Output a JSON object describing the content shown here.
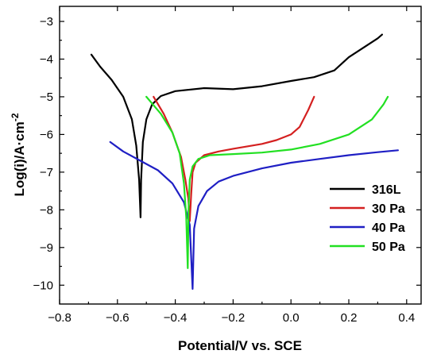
{
  "chart_data": {
    "type": "line",
    "title": "",
    "xlabel": "Potential/V vs. SCE",
    "ylabel": "Log(i)/A·cm-2",
    "xlim": [
      -0.8,
      0.45
    ],
    "ylim": [
      -10.5,
      -2.6
    ],
    "xticks": [
      -0.8,
      -0.6,
      -0.4,
      -0.2,
      0.0,
      0.2,
      0.4
    ],
    "xtick_labels": [
      "−0.8",
      "−0.6",
      "−0.4",
      "−0.2",
      "0.0",
      "0.2",
      "0.4"
    ],
    "yticks": [
      -10,
      -9,
      -8,
      -7,
      -6,
      -5,
      -4,
      -3
    ],
    "ytick_labels": [
      "−10",
      "−9",
      "−8",
      "−7",
      "−6",
      "−5",
      "−4",
      "−3"
    ],
    "grid": false,
    "legend_position": "lower-right",
    "series": [
      {
        "name": "316L",
        "color": "#000000",
        "points": [
          [
            -0.69,
            -3.88
          ],
          [
            -0.66,
            -4.2
          ],
          [
            -0.62,
            -4.55
          ],
          [
            -0.58,
            -5.0
          ],
          [
            -0.55,
            -5.6
          ],
          [
            -0.535,
            -6.3
          ],
          [
            -0.525,
            -7.2
          ],
          [
            -0.52,
            -8.2
          ],
          [
            -0.518,
            -7.2
          ],
          [
            -0.512,
            -6.2
          ],
          [
            -0.5,
            -5.6
          ],
          [
            -0.48,
            -5.2
          ],
          [
            -0.45,
            -4.98
          ],
          [
            -0.4,
            -4.85
          ],
          [
            -0.3,
            -4.77
          ],
          [
            -0.2,
            -4.8
          ],
          [
            -0.1,
            -4.72
          ],
          [
            0.0,
            -4.58
          ],
          [
            0.08,
            -4.48
          ],
          [
            0.15,
            -4.3
          ],
          [
            0.2,
            -3.95
          ],
          [
            0.25,
            -3.7
          ],
          [
            0.3,
            -3.45
          ],
          [
            0.315,
            -3.35
          ]
        ]
      },
      {
        "name": "30 Pa",
        "color": "#d42020",
        "points": [
          [
            -0.475,
            -5.0
          ],
          [
            -0.44,
            -5.45
          ],
          [
            -0.41,
            -5.95
          ],
          [
            -0.38,
            -6.6
          ],
          [
            -0.365,
            -7.2
          ],
          [
            -0.355,
            -7.7
          ],
          [
            -0.35,
            -8.3
          ],
          [
            -0.345,
            -7.6
          ],
          [
            -0.34,
            -7.0
          ],
          [
            -0.33,
            -6.75
          ],
          [
            -0.3,
            -6.55
          ],
          [
            -0.25,
            -6.45
          ],
          [
            -0.2,
            -6.38
          ],
          [
            -0.1,
            -6.25
          ],
          [
            -0.05,
            -6.15
          ],
          [
            0.0,
            -6.0
          ],
          [
            0.03,
            -5.8
          ],
          [
            0.06,
            -5.35
          ],
          [
            0.08,
            -5.0
          ]
        ]
      },
      {
        "name": "40 Pa",
        "color": "#1f1fc4",
        "points": [
          [
            -0.625,
            -6.2
          ],
          [
            -0.58,
            -6.45
          ],
          [
            -0.52,
            -6.7
          ],
          [
            -0.46,
            -6.95
          ],
          [
            -0.41,
            -7.3
          ],
          [
            -0.37,
            -7.8
          ],
          [
            -0.35,
            -8.4
          ],
          [
            -0.34,
            -10.1
          ],
          [
            -0.335,
            -8.5
          ],
          [
            -0.32,
            -7.9
          ],
          [
            -0.29,
            -7.5
          ],
          [
            -0.25,
            -7.25
          ],
          [
            -0.2,
            -7.1
          ],
          [
            -0.1,
            -6.9
          ],
          [
            0.0,
            -6.75
          ],
          [
            0.1,
            -6.65
          ],
          [
            0.2,
            -6.55
          ],
          [
            0.3,
            -6.47
          ],
          [
            0.37,
            -6.42
          ]
        ]
      },
      {
        "name": "50 Pa",
        "color": "#22e022",
        "points": [
          [
            -0.5,
            -5.0
          ],
          [
            -0.45,
            -5.45
          ],
          [
            -0.41,
            -5.95
          ],
          [
            -0.385,
            -6.5
          ],
          [
            -0.37,
            -7.3
          ],
          [
            -0.362,
            -8.2
          ],
          [
            -0.357,
            -9.55
          ],
          [
            -0.354,
            -8.0
          ],
          [
            -0.35,
            -7.2
          ],
          [
            -0.34,
            -6.85
          ],
          [
            -0.32,
            -6.65
          ],
          [
            -0.28,
            -6.55
          ],
          [
            -0.2,
            -6.52
          ],
          [
            -0.1,
            -6.48
          ],
          [
            0.0,
            -6.4
          ],
          [
            0.1,
            -6.25
          ],
          [
            0.2,
            -6.0
          ],
          [
            0.28,
            -5.6
          ],
          [
            0.32,
            -5.2
          ],
          [
            0.335,
            -5.0
          ]
        ]
      }
    ]
  }
}
